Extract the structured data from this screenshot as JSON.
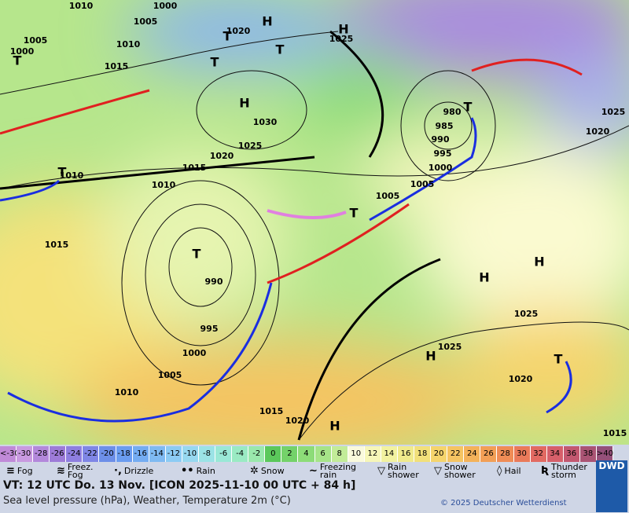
{
  "map": {
    "pressure_labels": [
      "1010",
      "1000",
      "1005",
      "1005",
      "1010",
      "1015",
      "1000",
      "1020",
      "1025",
      "1030",
      "1025",
      "1020",
      "1015",
      "1010",
      "1010",
      "1015",
      "990",
      "995",
      "1000",
      "1005",
      "1010",
      "1015",
      "1020",
      "1005",
      "1005",
      "1000",
      "995",
      "990",
      "985",
      "980",
      "1020",
      "1025",
      "1025",
      "1025",
      "1020",
      "1015"
    ],
    "highs": [
      "H",
      "H",
      "H",
      "H",
      "H",
      "H",
      "H"
    ],
    "lows": [
      "T",
      "T",
      "T",
      "T",
      "T",
      "T",
      "T",
      "T",
      "T"
    ]
  },
  "colorbar": {
    "cells": [
      {
        "label": "<-30",
        "color": "#c08ad8"
      },
      {
        "label": "-30",
        "color": "#c99ae0"
      },
      {
        "label": "-28",
        "color": "#b388db"
      },
      {
        "label": "-26",
        "color": "#9d7bd8"
      },
      {
        "label": "-24",
        "color": "#8e7ee0"
      },
      {
        "label": "-22",
        "color": "#7f86e6"
      },
      {
        "label": "-20",
        "color": "#6d8fe8"
      },
      {
        "label": "-18",
        "color": "#6a9cf0"
      },
      {
        "label": "-16",
        "color": "#74acf2"
      },
      {
        "label": "-14",
        "color": "#7fbaf2"
      },
      {
        "label": "-12",
        "color": "#8ccbf4"
      },
      {
        "label": "-10",
        "color": "#97d8f0"
      },
      {
        "label": "-8",
        "color": "#9be3e6"
      },
      {
        "label": "-6",
        "color": "#9ae8d6"
      },
      {
        "label": "-4",
        "color": "#9aeac3"
      },
      {
        "label": "-2",
        "color": "#9ae8ad"
      },
      {
        "label": "0",
        "color": "#5bc85b"
      },
      {
        "label": "2",
        "color": "#74d26a"
      },
      {
        "label": "4",
        "color": "#8ddc78"
      },
      {
        "label": "6",
        "color": "#a6e488"
      },
      {
        "label": "8",
        "color": "#c2ec98"
      },
      {
        "label": "10",
        "color": "#fafadc"
      },
      {
        "label": "12",
        "color": "#f6f6b8"
      },
      {
        "label": "14",
        "color": "#f2f2a0"
      },
      {
        "label": "16",
        "color": "#f0ea8c"
      },
      {
        "label": "18",
        "color": "#f2e07a"
      },
      {
        "label": "20",
        "color": "#f5d46c"
      },
      {
        "label": "22",
        "color": "#f5c462"
      },
      {
        "label": "24",
        "color": "#f4b25a"
      },
      {
        "label": "26",
        "color": "#f29f56"
      },
      {
        "label": "28",
        "color": "#ef8c56"
      },
      {
        "label": "30",
        "color": "#ea7a5a"
      },
      {
        "label": "32",
        "color": "#e26a62"
      },
      {
        "label": "34",
        "color": "#d65f6a"
      },
      {
        "label": "36",
        "color": "#c35870"
      },
      {
        "label": "38",
        "color": "#aa5474"
      },
      {
        "label": ">40 °C",
        "color": "#94507a"
      }
    ]
  },
  "legend": [
    "Fog",
    "Freez. Fog",
    "Drizzle",
    "Rain",
    "Snow",
    "Freezing rain",
    "Rain shower",
    "Snow shower",
    "Hail",
    "Thunder storm"
  ],
  "footer": {
    "valid_time": "VT: 12 UTC Do.  13 Nov. [ICON 2025-11-10  00 UTC + 84 h]",
    "description": "Sea level pressure (hPa), Weather, Temperature 2m (°C)",
    "copyright": "© 2025 Deutscher Wetterdienst",
    "logo": "DWD"
  }
}
